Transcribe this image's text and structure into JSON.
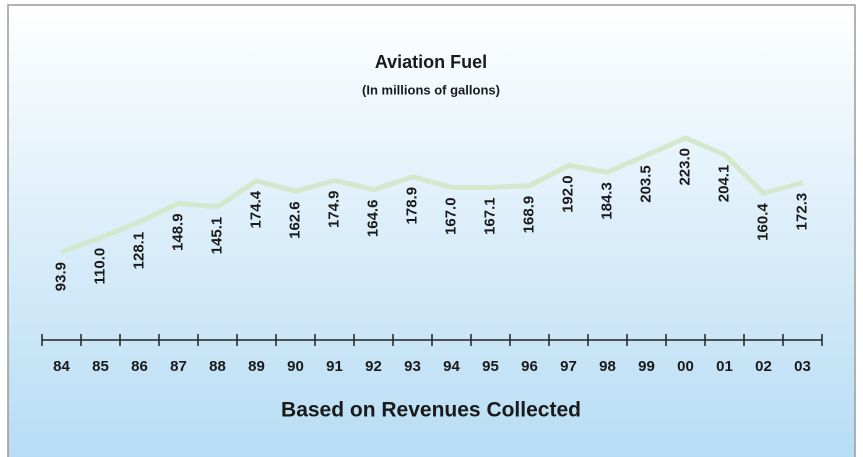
{
  "chart_data": {
    "type": "line",
    "title": "Aviation Fuel",
    "subtitle": "(In millions of gallons)",
    "x_label": "Based on Revenues Collected",
    "categories": [
      "84",
      "85",
      "86",
      "87",
      "88",
      "89",
      "90",
      "91",
      "92",
      "93",
      "94",
      "95",
      "96",
      "97",
      "98",
      "99",
      "00",
      "01",
      "02",
      "03"
    ],
    "series": [
      {
        "name": "Aviation Fuel",
        "color": "#d3e8cc",
        "values": [
          93.9,
          110.0,
          128.1,
          148.9,
          145.1,
          174.4,
          162.6,
          174.9,
          164.6,
          178.9,
          167.0,
          167.1,
          168.9,
          192.0,
          184.3,
          203.5,
          223.0,
          204.1,
          160.4,
          172.3
        ],
        "value_labels": [
          "93.9",
          "110.0",
          "128.1",
          "148.9",
          "145.1",
          "174.4",
          "162.6",
          "174.9",
          "164.6",
          "178.9",
          "167.0",
          "167.1",
          "168.9",
          "192.0",
          "184.3",
          "203.5",
          "223.0",
          "204.1",
          "160.4",
          "172.3"
        ]
      }
    ]
  }
}
